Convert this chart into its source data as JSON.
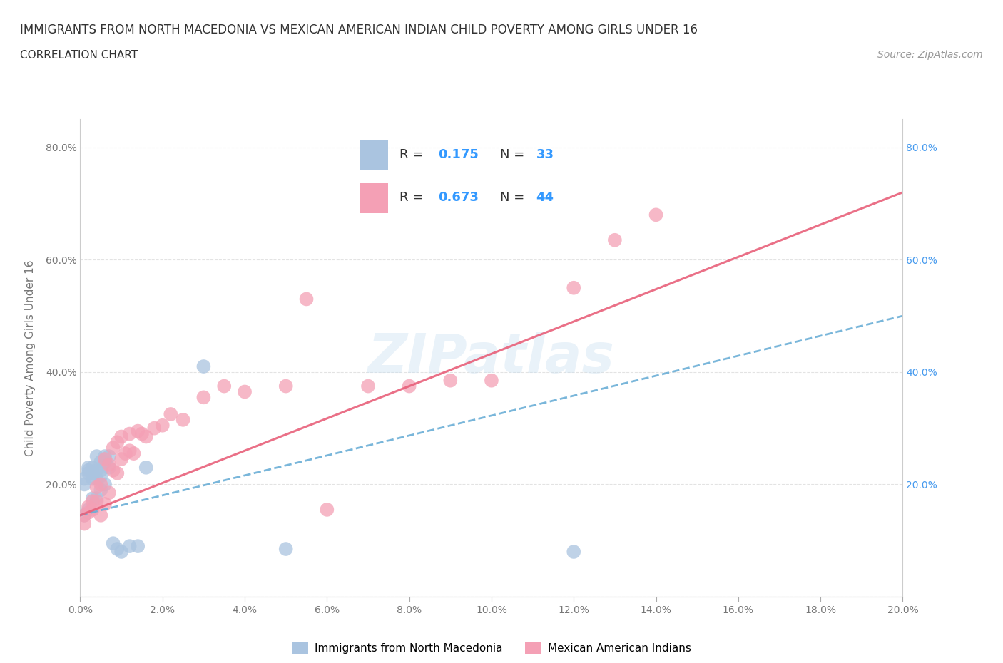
{
  "title": "IMMIGRANTS FROM NORTH MACEDONIA VS MEXICAN AMERICAN INDIAN CHILD POVERTY AMONG GIRLS UNDER 16",
  "subtitle": "CORRELATION CHART",
  "source": "Source: ZipAtlas.com",
  "ylabel": "Child Poverty Among Girls Under 16",
  "xlim": [
    0.0,
    0.2
  ],
  "ylim": [
    0.0,
    0.85
  ],
  "xticks": [
    0.0,
    0.02,
    0.04,
    0.06,
    0.08,
    0.1,
    0.12,
    0.14,
    0.16,
    0.18,
    0.2
  ],
  "yticks": [
    0.0,
    0.2,
    0.4,
    0.6,
    0.8
  ],
  "series1_label": "Immigrants from North Macedonia",
  "series1_R": "0.175",
  "series1_N": "33",
  "series1_color": "#aac4e0",
  "series1_line_color": "#6aaed6",
  "series2_label": "Mexican American Indians",
  "series2_R": "0.673",
  "series2_N": "44",
  "series2_color": "#f4a0b5",
  "series2_line_color": "#e8607a",
  "watermark": "ZIPatlas",
  "background_color": "#ffffff",
  "grid_color": "#cccccc",
  "series1_x": [
    0.001,
    0.001,
    0.001,
    0.002,
    0.002,
    0.002,
    0.002,
    0.003,
    0.003,
    0.003,
    0.003,
    0.004,
    0.004,
    0.004,
    0.004,
    0.005,
    0.005,
    0.005,
    0.005,
    0.006,
    0.006,
    0.006,
    0.007,
    0.007,
    0.008,
    0.009,
    0.01,
    0.012,
    0.014,
    0.016,
    0.03,
    0.05,
    0.12
  ],
  "series1_y": [
    0.145,
    0.2,
    0.21,
    0.155,
    0.22,
    0.225,
    0.23,
    0.175,
    0.21,
    0.22,
    0.23,
    0.175,
    0.21,
    0.225,
    0.25,
    0.19,
    0.215,
    0.225,
    0.24,
    0.2,
    0.24,
    0.25,
    0.23,
    0.25,
    0.095,
    0.085,
    0.08,
    0.09,
    0.09,
    0.23,
    0.41,
    0.085,
    0.08
  ],
  "series2_x": [
    0.001,
    0.001,
    0.002,
    0.002,
    0.003,
    0.003,
    0.004,
    0.004,
    0.005,
    0.005,
    0.006,
    0.006,
    0.007,
    0.007,
    0.008,
    0.008,
    0.009,
    0.009,
    0.01,
    0.01,
    0.011,
    0.012,
    0.012,
    0.013,
    0.014,
    0.015,
    0.016,
    0.018,
    0.02,
    0.022,
    0.025,
    0.03,
    0.035,
    0.04,
    0.05,
    0.055,
    0.06,
    0.07,
    0.08,
    0.09,
    0.1,
    0.12,
    0.13,
    0.14
  ],
  "series2_y": [
    0.13,
    0.145,
    0.15,
    0.16,
    0.155,
    0.17,
    0.17,
    0.195,
    0.145,
    0.2,
    0.165,
    0.245,
    0.185,
    0.235,
    0.225,
    0.265,
    0.22,
    0.275,
    0.245,
    0.285,
    0.255,
    0.26,
    0.29,
    0.255,
    0.295,
    0.29,
    0.285,
    0.3,
    0.305,
    0.325,
    0.315,
    0.355,
    0.375,
    0.365,
    0.375,
    0.53,
    0.155,
    0.375,
    0.375,
    0.385,
    0.385,
    0.55,
    0.635,
    0.68
  ],
  "series1_trendline_x": [
    0.0,
    0.2
  ],
  "series1_trendline_y": [
    0.145,
    0.5
  ],
  "series2_trendline_x": [
    0.0,
    0.2
  ],
  "series2_trendline_y": [
    0.145,
    0.72
  ]
}
